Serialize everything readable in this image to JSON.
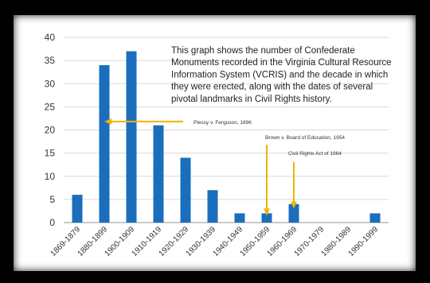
{
  "chart_data": {
    "type": "bar",
    "categories": [
      "1869-1879",
      "1880-1899",
      "1900-1909",
      "1910-1919",
      "1920-1929",
      "1930-1939",
      "1940-1949",
      "1950-1959",
      "1960-1969",
      "1970-1979",
      "1980-1989",
      "1990-1999"
    ],
    "values": [
      6,
      34,
      37,
      21,
      14,
      7,
      2,
      2,
      4,
      0,
      0,
      2
    ],
    "ylim": [
      0,
      40
    ],
    "yticks": [
      0,
      5,
      10,
      15,
      20,
      25,
      30,
      35,
      40
    ],
    "grid": true,
    "bar_color": "#1a6ebd",
    "description_lines": [
      "This graph shows the number of Confederate",
      "Monuments recorded in the Virginia Cultural Resource",
      "Information System (VCRIS) and the decade in which",
      "they were erected, along with the dates of several",
      "pivotal landmarks in Civil Rights history."
    ],
    "annotations": [
      {
        "label": "Plessy v. Ferguson, 1896",
        "direction": "left",
        "target_category": 1,
        "target_value": 22
      },
      {
        "label": "Brown v. Board of Education, 1954",
        "direction": "down",
        "target_category": 7,
        "target_value": 1.5
      },
      {
        "label": "Civil Rights Act of 1964",
        "direction": "down",
        "target_category": 8,
        "target_value": 3
      }
    ],
    "arrow_color": "#f0b400"
  }
}
